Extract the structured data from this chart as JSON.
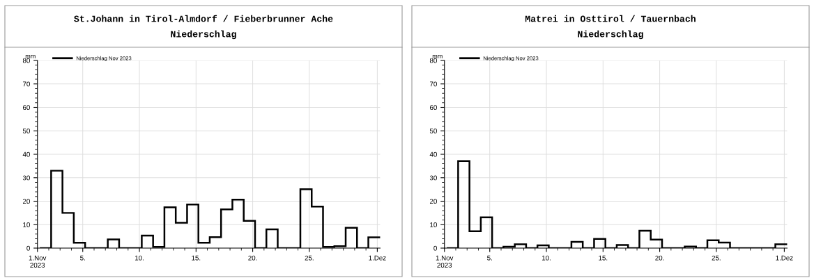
{
  "chart_data": [
    {
      "type": "step",
      "title": "St.Johann in Tirol-Almdorf / Fieberbrunner Ache",
      "subtitle": "Niederschlag",
      "ylabel": "mm",
      "x": [
        "2023-11-01T05:00",
        "2023-11-02T05:00",
        "2023-11-03T05:00",
        "2023-11-04T05:00",
        "2023-11-05T05:00",
        "2023-11-06T05:00",
        "2023-11-07T05:00",
        "2023-11-08T05:00",
        "2023-11-09T05:00",
        "2023-11-10T05:00",
        "2023-11-11T05:00",
        "2023-11-12T05:00",
        "2023-11-13T05:00",
        "2023-11-14T05:00",
        "2023-11-15T05:00",
        "2023-11-16T05:00",
        "2023-11-17T05:00",
        "2023-11-18T05:00",
        "2023-11-19T05:00",
        "2023-11-20T05:00",
        "2023-11-21T05:00",
        "2023-11-22T05:00",
        "2023-11-23T05:00",
        "2023-11-24T05:00",
        "2023-11-25T05:00",
        "2023-11-26T05:00",
        "2023-11-27T05:00",
        "2023-11-28T05:00",
        "2023-11-29T05:00",
        "2023-11-30T05:00"
      ],
      "series": [
        {
          "name": "Niederschlag Nov 2023",
          "color": "#000000",
          "values": [
            0,
            33,
            15,
            2.3,
            0,
            0,
            3.7,
            0,
            0,
            5.3,
            0.5,
            17.4,
            10.8,
            18.6,
            2.3,
            4.7,
            16.5,
            20.7,
            11.6,
            0,
            8,
            0,
            0,
            25.1,
            17.7,
            0.5,
            0.8,
            8.7,
            0,
            4.6
          ]
        }
      ],
      "xlim": [
        "2023-11-01",
        "2023-12-01T06:00"
      ],
      "xticks": [
        {
          "value": "2023-11-01",
          "label": "1.Nov\n2023"
        },
        {
          "value": "2023-11-05",
          "label": "5."
        },
        {
          "value": "2023-11-10",
          "label": "10."
        },
        {
          "value": "2023-11-15",
          "label": "15."
        },
        {
          "value": "2023-11-20",
          "label": "20."
        },
        {
          "value": "2023-11-25",
          "label": "25."
        },
        {
          "value": "2023-12-01",
          "label": "1.Dez"
        }
      ],
      "ylim": [
        0,
        80
      ],
      "yticks": [
        0,
        10,
        20,
        30,
        40,
        50,
        60,
        70,
        80
      ],
      "grid": true,
      "legend": "top left",
      "line_style": "solid",
      "marker": "none"
    },
    {
      "type": "step",
      "title": "Matrei in Osttirol / Tauernbach",
      "subtitle": "Niederschlag",
      "ylabel": "mm",
      "x": [
        "2023-11-01T05:00",
        "2023-11-02T05:00",
        "2023-11-03T05:00",
        "2023-11-04T05:00",
        "2023-11-05T05:00",
        "2023-11-06T05:00",
        "2023-11-07T05:00",
        "2023-11-08T05:00",
        "2023-11-09T05:00",
        "2023-11-10T05:00",
        "2023-11-11T05:00",
        "2023-11-12T05:00",
        "2023-11-13T05:00",
        "2023-11-14T05:00",
        "2023-11-15T05:00",
        "2023-11-16T05:00",
        "2023-11-17T05:00",
        "2023-11-18T05:00",
        "2023-11-19T05:00",
        "2023-11-20T05:00",
        "2023-11-21T05:00",
        "2023-11-22T05:00",
        "2023-11-23T05:00",
        "2023-11-24T05:00",
        "2023-11-25T05:00",
        "2023-11-26T05:00",
        "2023-11-27T05:00",
        "2023-11-28T05:00",
        "2023-11-29T05:00",
        "2023-11-30T05:00"
      ],
      "series": [
        {
          "name": "Niederschlag Nov 2023",
          "color": "#000000",
          "values": [
            0,
            37.1,
            7.2,
            13.1,
            0,
            0.6,
            1.6,
            0,
            1.2,
            0,
            0,
            2.7,
            0,
            3.9,
            0,
            1.3,
            0,
            7.4,
            3.6,
            0,
            0,
            0.7,
            0,
            3.3,
            2.4,
            0,
            0,
            0,
            0,
            1.6
          ]
        }
      ],
      "xlim": [
        "2023-11-01",
        "2023-12-01T06:00"
      ],
      "xticks": [
        {
          "value": "2023-11-01",
          "label": "1.Nov\n2023"
        },
        {
          "value": "2023-11-05",
          "label": "5."
        },
        {
          "value": "2023-11-10",
          "label": "10."
        },
        {
          "value": "2023-11-15",
          "label": "15."
        },
        {
          "value": "2023-11-20",
          "label": "20."
        },
        {
          "value": "2023-11-25",
          "label": "25."
        },
        {
          "value": "2023-12-01",
          "label": "1.Dez"
        }
      ],
      "ylim": [
        0,
        80
      ],
      "yticks": [
        0,
        10,
        20,
        30,
        40,
        50,
        60,
        70,
        80
      ],
      "grid": true,
      "legend": "top left",
      "line_style": "solid",
      "marker": "none"
    }
  ]
}
